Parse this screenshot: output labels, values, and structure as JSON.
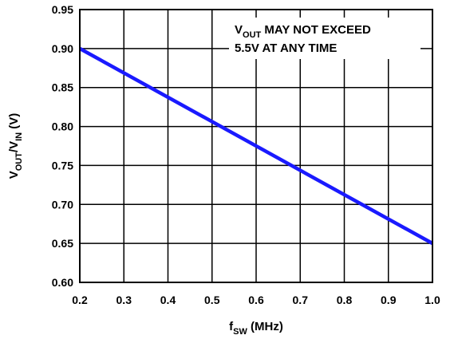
{
  "chart_data": {
    "type": "line",
    "xlabel": {
      "base": "f",
      "sub": "SW",
      "suffix": " (MHz)"
    },
    "ylabel": {
      "part1": "V",
      "sub1": "OUT",
      "part2": "/V",
      "sub2": "IN",
      "suffix": " (V)"
    },
    "xlim": [
      0.2,
      1.0
    ],
    "ylim": [
      0.6,
      0.95
    ],
    "x_ticks": [
      "0.2",
      "0.3",
      "0.4",
      "0.5",
      "0.6",
      "0.7",
      "0.8",
      "0.9",
      "1.0"
    ],
    "y_ticks": [
      "0.60",
      "0.65",
      "0.70",
      "0.75",
      "0.80",
      "0.85",
      "0.90",
      "0.95"
    ],
    "grid": true,
    "line_color": "#1a1aff",
    "series": [
      {
        "x": [
          0.2,
          1.0
        ],
        "y": [
          0.9,
          0.65
        ]
      }
    ],
    "annotation": {
      "line1_prefix": "V",
      "line1_sub": "OUT",
      "line1_rest": " MAY NOT EXCEED",
      "line2": "5.5V AT ANY TIME"
    }
  }
}
